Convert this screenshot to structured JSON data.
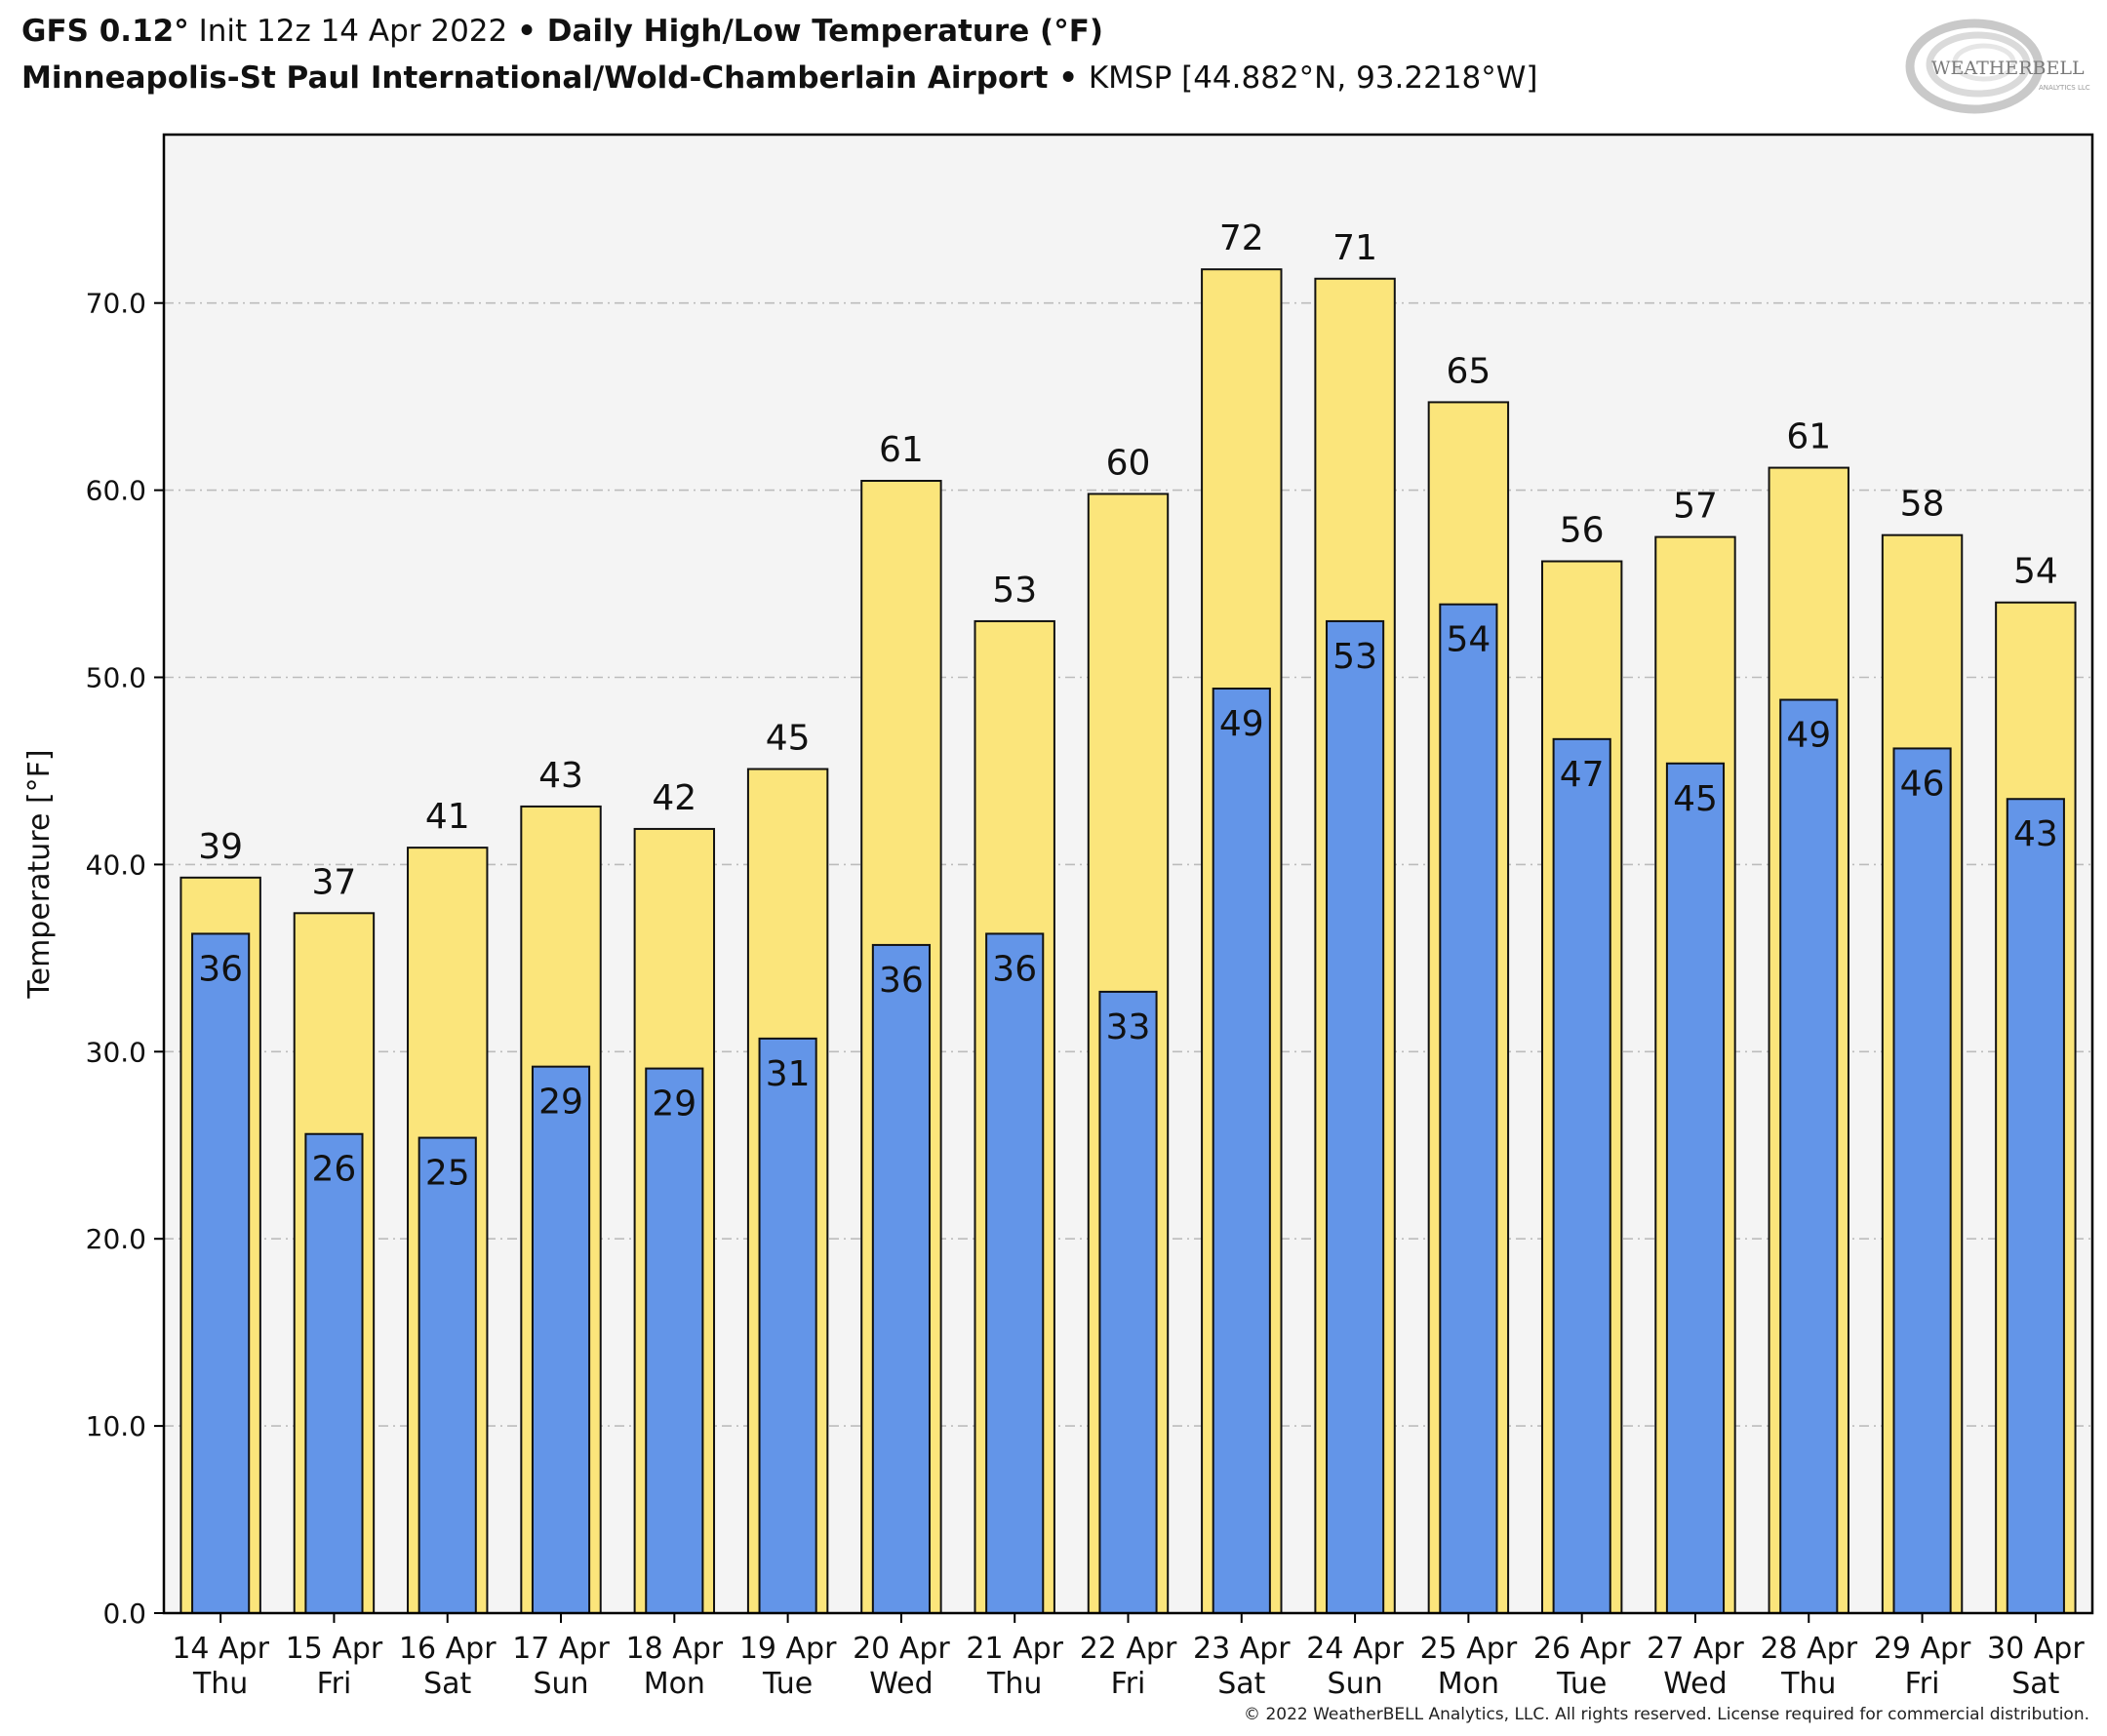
{
  "header": {
    "line1": {
      "model": "GFS 0.12°",
      "init": " Init 12z 14 Apr 2022 ",
      "sep": "•",
      "title": " Daily High/Low Temperature (°F)"
    },
    "line2": {
      "station": "Minneapolis-St Paul International/Wold-Chamberlain Airport",
      "sep": " • ",
      "coords": "KMSP [44.882°N, 93.2218°W]"
    }
  },
  "logo": {
    "text": "WEATHERBELL",
    "subtext": "ANALYTICS LLC"
  },
  "copyright": "© 2022 WeatherBELL Analytics, LLC. All rights reserved. License required for commercial distribution.",
  "colors": {
    "high": "#fbe57b",
    "low": "#6395e8",
    "plot_bg": "#f4f4f4",
    "grid": "#bcbcbc"
  },
  "chart_data": {
    "type": "bar",
    "ylabel": "Temperature [°F]",
    "ylim": [
      0,
      79
    ],
    "yticks": [
      "0.0",
      "10.0",
      "20.0",
      "30.0",
      "40.0",
      "50.0",
      "60.0",
      "70.0"
    ],
    "grid": true,
    "categories": [
      "14 Apr",
      "15 Apr",
      "16 Apr",
      "17 Apr",
      "18 Apr",
      "19 Apr",
      "20 Apr",
      "21 Apr",
      "22 Apr",
      "23 Apr",
      "24 Apr",
      "25 Apr",
      "26 Apr",
      "27 Apr",
      "28 Apr",
      "29 Apr",
      "30 Apr"
    ],
    "weekdays": [
      "Thu",
      "Fri",
      "Sat",
      "Sun",
      "Mon",
      "Tue",
      "Wed",
      "Thu",
      "Fri",
      "Sat",
      "Sun",
      "Mon",
      "Tue",
      "Wed",
      "Thu",
      "Fri",
      "Sat"
    ],
    "series": [
      {
        "key": "high",
        "values": [
          39.3,
          37.4,
          40.9,
          43.1,
          41.9,
          45.1,
          60.5,
          53.0,
          59.8,
          71.8,
          71.3,
          64.7,
          56.2,
          57.5,
          61.2,
          57.6,
          54.0
        ],
        "labels": [
          "39",
          "37",
          "41",
          "43",
          "42",
          "45",
          "61",
          "53",
          "60",
          "72",
          "71",
          "65",
          "56",
          "57",
          "61",
          "58",
          "54"
        ]
      },
      {
        "key": "low",
        "values": [
          36.3,
          25.6,
          25.4,
          29.2,
          29.1,
          30.7,
          35.7,
          36.3,
          33.2,
          49.4,
          53.0,
          53.9,
          46.7,
          45.4,
          48.8,
          46.2,
          43.5
        ],
        "labels": [
          "36",
          "26",
          "25",
          "29",
          "29",
          "31",
          "36",
          "36",
          "33",
          "49",
          "53",
          "54",
          "47",
          "45",
          "49",
          "46",
          "43"
        ]
      }
    ]
  }
}
